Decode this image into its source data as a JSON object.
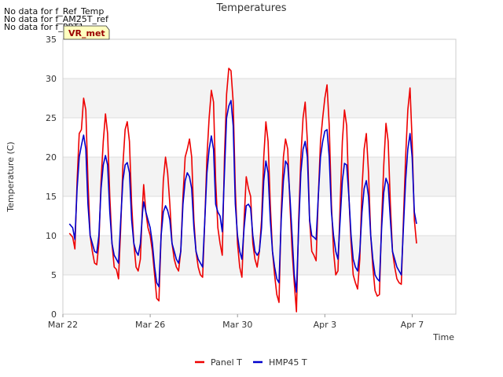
{
  "notes": [
    "No data for f_Ref_Temp",
    "No data for f_AM25T_ref",
    "No data for f_PRT1"
  ],
  "badge": "VR_met",
  "chart_data": {
    "type": "line",
    "title": "Temperatures",
    "xlabel": "Time",
    "ylabel": "Temperature (C)",
    "ylim": [
      0,
      35
    ],
    "xlim": [
      0,
      18
    ],
    "yticks": [
      0,
      5,
      10,
      15,
      20,
      25,
      30,
      35
    ],
    "xticks": [
      {
        "value": 0,
        "label": "Mar 22"
      },
      {
        "value": 4,
        "label": "Mar 26"
      },
      {
        "value": 8,
        "label": "Mar 30"
      },
      {
        "value": 12,
        "label": "Apr 3"
      },
      {
        "value": 16,
        "label": "Apr 7"
      }
    ],
    "grid": true,
    "legend": "bottom-center",
    "series": [
      {
        "name": "Panel T",
        "color": "#ee0000",
        "points": [
          [
            0.3,
            10.3
          ],
          [
            0.45,
            9.8
          ],
          [
            0.55,
            8.3
          ],
          [
            0.65,
            17
          ],
          [
            0.75,
            23
          ],
          [
            0.85,
            23.5
          ],
          [
            0.95,
            27.5
          ],
          [
            1.05,
            26
          ],
          [
            1.15,
            17
          ],
          [
            1.25,
            10
          ],
          [
            1.35,
            8
          ],
          [
            1.45,
            6.5
          ],
          [
            1.55,
            6.3
          ],
          [
            1.65,
            9
          ],
          [
            1.75,
            17
          ],
          [
            1.85,
            22
          ],
          [
            1.95,
            25.5
          ],
          [
            2.05,
            23
          ],
          [
            2.15,
            15
          ],
          [
            2.25,
            9
          ],
          [
            2.35,
            6
          ],
          [
            2.45,
            5.7
          ],
          [
            2.55,
            4.5
          ],
          [
            2.65,
            11
          ],
          [
            2.75,
            19
          ],
          [
            2.85,
            23.5
          ],
          [
            2.95,
            24.5
          ],
          [
            3.05,
            22
          ],
          [
            3.15,
            14
          ],
          [
            3.25,
            9
          ],
          [
            3.35,
            6
          ],
          [
            3.45,
            5.5
          ],
          [
            3.55,
            7
          ],
          [
            3.65,
            14
          ],
          [
            3.7,
            16.5
          ],
          [
            3.8,
            13
          ],
          [
            3.9,
            11
          ],
          [
            4.0,
            10
          ],
          [
            4.1,
            8
          ],
          [
            4.2,
            5
          ],
          [
            4.3,
            2
          ],
          [
            4.4,
            1.7
          ],
          [
            4.5,
            10
          ],
          [
            4.6,
            17
          ],
          [
            4.7,
            20
          ],
          [
            4.8,
            18
          ],
          [
            4.9,
            14
          ],
          [
            5.0,
            9
          ],
          [
            5.1,
            7
          ],
          [
            5.2,
            6
          ],
          [
            5.3,
            5.5
          ],
          [
            5.4,
            8
          ],
          [
            5.5,
            15
          ],
          [
            5.6,
            20
          ],
          [
            5.7,
            21
          ],
          [
            5.8,
            22.3
          ],
          [
            5.9,
            20
          ],
          [
            6.0,
            12
          ],
          [
            6.1,
            8
          ],
          [
            6.2,
            6
          ],
          [
            6.3,
            5
          ],
          [
            6.4,
            4.7
          ],
          [
            6.5,
            12
          ],
          [
            6.6,
            20
          ],
          [
            6.7,
            25
          ],
          [
            6.8,
            28.5
          ],
          [
            6.9,
            27
          ],
          [
            7.0,
            17
          ],
          [
            7.1,
            11
          ],
          [
            7.2,
            9
          ],
          [
            7.3,
            7.5
          ],
          [
            7.4,
            20
          ],
          [
            7.5,
            28
          ],
          [
            7.6,
            31.3
          ],
          [
            7.7,
            31
          ],
          [
            7.8,
            27
          ],
          [
            7.9,
            16
          ],
          [
            8.0,
            9
          ],
          [
            8.1,
            6
          ],
          [
            8.2,
            4.7
          ],
          [
            8.3,
            12
          ],
          [
            8.4,
            17.5
          ],
          [
            8.5,
            16
          ],
          [
            8.6,
            15
          ],
          [
            8.7,
            9
          ],
          [
            8.8,
            7
          ],
          [
            8.9,
            6
          ],
          [
            9.0,
            8
          ],
          [
            9.1,
            12
          ],
          [
            9.2,
            20
          ],
          [
            9.3,
            24.5
          ],
          [
            9.4,
            22
          ],
          [
            9.5,
            14
          ],
          [
            9.6,
            8
          ],
          [
            9.7,
            5
          ],
          [
            9.8,
            2.5
          ],
          [
            9.9,
            1.5
          ],
          [
            10.0,
            13
          ],
          [
            10.1,
            20
          ],
          [
            10.2,
            22.3
          ],
          [
            10.3,
            21
          ],
          [
            10.4,
            14
          ],
          [
            10.5,
            8
          ],
          [
            10.6,
            4
          ],
          [
            10.7,
            0.3
          ],
          [
            10.8,
            12
          ],
          [
            10.9,
            20
          ],
          [
            11.0,
            25
          ],
          [
            11.1,
            27
          ],
          [
            11.2,
            22
          ],
          [
            11.3,
            12
          ],
          [
            11.4,
            8
          ],
          [
            11.5,
            7.5
          ],
          [
            11.6,
            6.8
          ],
          [
            11.7,
            15
          ],
          [
            11.8,
            22
          ],
          [
            11.9,
            25
          ],
          [
            12.0,
            27.5
          ],
          [
            12.1,
            29.2
          ],
          [
            12.2,
            24
          ],
          [
            12.3,
            14
          ],
          [
            12.4,
            8
          ],
          [
            12.5,
            5
          ],
          [
            12.6,
            5.5
          ],
          [
            12.7,
            14
          ],
          [
            12.8,
            22
          ],
          [
            12.9,
            26
          ],
          [
            13.0,
            24
          ],
          [
            13.1,
            15
          ],
          [
            13.2,
            9
          ],
          [
            13.3,
            5
          ],
          [
            13.4,
            4
          ],
          [
            13.5,
            3.2
          ],
          [
            13.6,
            7
          ],
          [
            13.7,
            16
          ],
          [
            13.8,
            21
          ],
          [
            13.9,
            23
          ],
          [
            14.0,
            18
          ],
          [
            14.1,
            10
          ],
          [
            14.2,
            6
          ],
          [
            14.3,
            3
          ],
          [
            14.4,
            2.3
          ],
          [
            14.5,
            2.5
          ],
          [
            14.6,
            12
          ],
          [
            14.7,
            19
          ],
          [
            14.8,
            24.3
          ],
          [
            14.9,
            22
          ],
          [
            15.0,
            14
          ],
          [
            15.1,
            8
          ],
          [
            15.2,
            6
          ],
          [
            15.3,
            4.5
          ],
          [
            15.4,
            4
          ],
          [
            15.5,
            3.8
          ],
          [
            15.6,
            12
          ],
          [
            15.7,
            20
          ],
          [
            15.8,
            26
          ],
          [
            15.9,
            28.8
          ],
          [
            16.0,
            22
          ],
          [
            16.1,
            12
          ],
          [
            16.2,
            9
          ]
        ]
      },
      {
        "name": "HMP45 T",
        "color": "#0000cc",
        "points": [
          [
            0.3,
            11.5
          ],
          [
            0.45,
            11
          ],
          [
            0.55,
            9.5
          ],
          [
            0.65,
            16
          ],
          [
            0.75,
            20
          ],
          [
            0.85,
            21.5
          ],
          [
            0.95,
            22.8
          ],
          [
            1.05,
            21
          ],
          [
            1.15,
            14
          ],
          [
            1.25,
            10
          ],
          [
            1.35,
            9
          ],
          [
            1.45,
            8
          ],
          [
            1.55,
            7.8
          ],
          [
            1.65,
            10
          ],
          [
            1.75,
            16
          ],
          [
            1.85,
            19
          ],
          [
            1.95,
            20.2
          ],
          [
            2.05,
            19
          ],
          [
            2.15,
            13
          ],
          [
            2.25,
            9
          ],
          [
            2.35,
            7.5
          ],
          [
            2.45,
            7
          ],
          [
            2.55,
            6.5
          ],
          [
            2.65,
            12
          ],
          [
            2.75,
            17
          ],
          [
            2.85,
            19
          ],
          [
            2.95,
            19.3
          ],
          [
            3.05,
            18
          ],
          [
            3.15,
            12
          ],
          [
            3.25,
            9
          ],
          [
            3.35,
            8
          ],
          [
            3.45,
            7.5
          ],
          [
            3.55,
            9
          ],
          [
            3.65,
            13
          ],
          [
            3.7,
            14.3
          ],
          [
            3.8,
            13
          ],
          [
            3.9,
            12
          ],
          [
            4.0,
            11
          ],
          [
            4.1,
            9
          ],
          [
            4.2,
            6
          ],
          [
            4.3,
            4
          ],
          [
            4.4,
            3.5
          ],
          [
            4.5,
            10
          ],
          [
            4.6,
            13
          ],
          [
            4.7,
            13.8
          ],
          [
            4.8,
            13.2
          ],
          [
            4.9,
            12
          ],
          [
            5.0,
            9
          ],
          [
            5.1,
            8
          ],
          [
            5.2,
            7
          ],
          [
            5.3,
            6.5
          ],
          [
            5.4,
            8
          ],
          [
            5.5,
            14
          ],
          [
            5.6,
            17
          ],
          [
            5.7,
            18
          ],
          [
            5.8,
            17.5
          ],
          [
            5.9,
            16
          ],
          [
            6.0,
            11
          ],
          [
            6.1,
            8
          ],
          [
            6.2,
            7
          ],
          [
            6.3,
            6.5
          ],
          [
            6.4,
            6
          ],
          [
            6.5,
            12
          ],
          [
            6.6,
            18
          ],
          [
            6.7,
            21
          ],
          [
            6.8,
            22.7
          ],
          [
            6.9,
            21
          ],
          [
            7.0,
            14
          ],
          [
            7.1,
            13
          ],
          [
            7.2,
            12.5
          ],
          [
            7.3,
            10.5
          ],
          [
            7.4,
            18
          ],
          [
            7.5,
            25
          ],
          [
            7.6,
            26.5
          ],
          [
            7.7,
            27.2
          ],
          [
            7.8,
            24
          ],
          [
            7.9,
            14
          ],
          [
            8.0,
            10
          ],
          [
            8.1,
            8
          ],
          [
            8.2,
            7
          ],
          [
            8.3,
            11
          ],
          [
            8.4,
            13.8
          ],
          [
            8.5,
            14
          ],
          [
            8.6,
            13.5
          ],
          [
            8.7,
            10
          ],
          [
            8.8,
            8
          ],
          [
            8.9,
            7.5
          ],
          [
            9.0,
            8
          ],
          [
            9.1,
            11
          ],
          [
            9.2,
            17
          ],
          [
            9.3,
            19.5
          ],
          [
            9.4,
            18
          ],
          [
            9.5,
            12
          ],
          [
            9.6,
            8
          ],
          [
            9.7,
            6
          ],
          [
            9.8,
            4.5
          ],
          [
            9.9,
            4
          ],
          [
            10.0,
            12
          ],
          [
            10.1,
            17
          ],
          [
            10.2,
            19.5
          ],
          [
            10.3,
            19
          ],
          [
            10.4,
            15
          ],
          [
            10.5,
            10
          ],
          [
            10.6,
            5
          ],
          [
            10.7,
            2.8
          ],
          [
            10.8,
            11
          ],
          [
            10.9,
            18
          ],
          [
            11.0,
            21
          ],
          [
            11.1,
            22
          ],
          [
            11.2,
            20
          ],
          [
            11.3,
            12
          ],
          [
            11.4,
            10
          ],
          [
            11.5,
            9.8
          ],
          [
            11.6,
            9.5
          ],
          [
            11.7,
            15
          ],
          [
            11.8,
            20
          ],
          [
            11.9,
            22
          ],
          [
            12.0,
            23.3
          ],
          [
            12.1,
            23.5
          ],
          [
            12.2,
            20
          ],
          [
            12.3,
            13
          ],
          [
            12.4,
            10
          ],
          [
            12.5,
            8
          ],
          [
            12.6,
            7
          ],
          [
            12.7,
            12
          ],
          [
            12.8,
            17
          ],
          [
            12.9,
            19.2
          ],
          [
            13.0,
            19
          ],
          [
            13.1,
            15
          ],
          [
            13.2,
            10
          ],
          [
            13.3,
            7
          ],
          [
            13.4,
            6
          ],
          [
            13.5,
            5.5
          ],
          [
            13.6,
            8
          ],
          [
            13.7,
            13
          ],
          [
            13.8,
            16
          ],
          [
            13.9,
            17
          ],
          [
            14.0,
            15
          ],
          [
            14.1,
            10
          ],
          [
            14.2,
            7
          ],
          [
            14.3,
            5
          ],
          [
            14.4,
            4.5
          ],
          [
            14.5,
            4.2
          ],
          [
            14.6,
            11
          ],
          [
            14.7,
            15.5
          ],
          [
            14.8,
            17.3
          ],
          [
            14.9,
            16.5
          ],
          [
            15.0,
            12
          ],
          [
            15.1,
            8
          ],
          [
            15.2,
            7
          ],
          [
            15.3,
            6
          ],
          [
            15.4,
            5.5
          ],
          [
            15.5,
            5
          ],
          [
            15.6,
            11
          ],
          [
            15.7,
            17
          ],
          [
            15.8,
            21
          ],
          [
            15.9,
            23
          ],
          [
            16.0,
            20
          ],
          [
            16.1,
            13
          ],
          [
            16.2,
            11.5
          ]
        ]
      }
    ]
  }
}
